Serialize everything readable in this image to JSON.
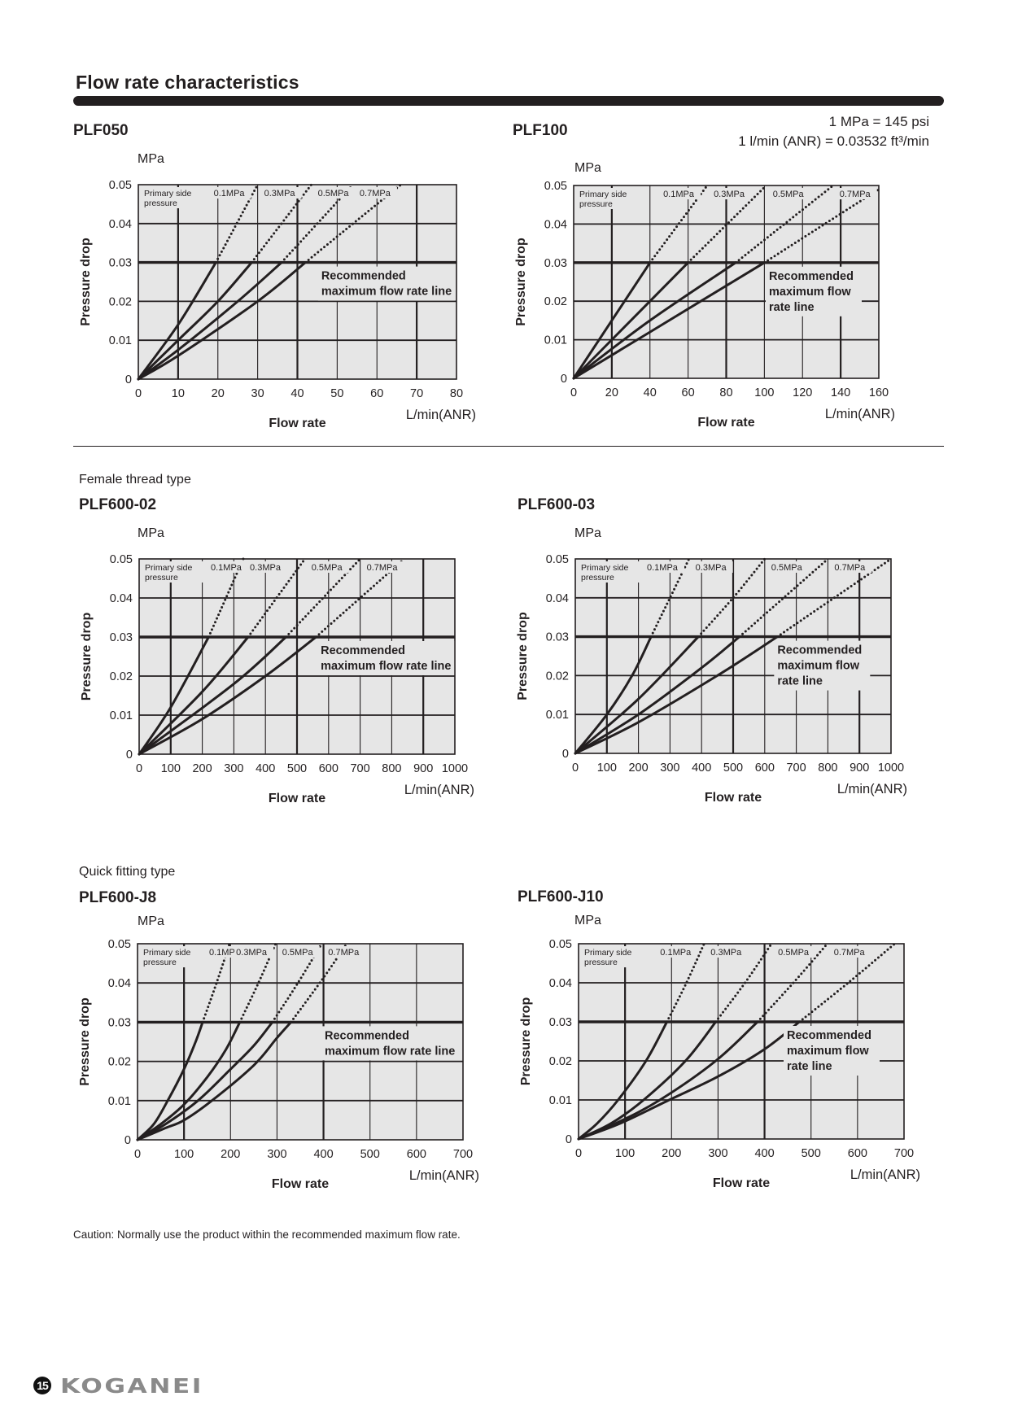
{
  "page": {
    "title": "Flow rate characteristics",
    "conversion": [
      "1 MPa = 145 psi",
      "1 l/min (ANR) = 0.03532 ft³/min"
    ],
    "groups": {
      "female": "Female thread type",
      "quick": "Quick fitting type"
    },
    "caution": "Caution: Normally use the product within the recommended maximum flow rate.",
    "page_number": "15",
    "brand": "KOGANEI"
  },
  "chart_data": [
    {
      "id": "plf050",
      "type": "line",
      "title": "PLF050",
      "xlabel": "Flow rate",
      "xunit": "L/min(ANR)",
      "ylabel": "Pressure drop",
      "yunit": "MPa",
      "xlim": [
        0,
        80
      ],
      "ylim": [
        0,
        0.05
      ],
      "xticks": [
        0,
        10,
        20,
        30,
        40,
        50,
        60,
        70,
        80
      ],
      "yticks": [
        0,
        0.01,
        0.02,
        0.03,
        0.04,
        0.05
      ],
      "ytick_labels": [
        "0",
        "0.01",
        "0.02",
        "0.03",
        "0.04",
        "0.05"
      ],
      "grid": true,
      "legend_title": [
        "Primary side",
        "pressure"
      ],
      "recommended_max_line": {
        "y": 0.03,
        "label": [
          "Recommended",
          "maximum flow rate line"
        ]
      },
      "series": [
        {
          "name": "0.1MPa",
          "solid": [
            [
              0,
              0
            ],
            [
              10,
              0.014
            ],
            [
              19.5,
              0.03
            ]
          ],
          "dotted": [
            [
              19.5,
              0.03
            ],
            [
              30,
              0.05
            ]
          ]
        },
        {
          "name": "0.3MPa",
          "solid": [
            [
              0,
              0
            ],
            [
              10,
              0.01
            ],
            [
              20,
              0.02
            ],
            [
              28.5,
              0.03
            ]
          ],
          "dotted": [
            [
              28.5,
              0.03
            ],
            [
              43.5,
              0.05
            ]
          ]
        },
        {
          "name": "0.5MPa",
          "solid": [
            [
              0,
              0
            ],
            [
              10,
              0.0075
            ],
            [
              25,
              0.02
            ],
            [
              36,
              0.03
            ]
          ],
          "dotted": [
            [
              36,
              0.03
            ],
            [
              54,
              0.05
            ]
          ]
        },
        {
          "name": "0.7MPa",
          "solid": [
            [
              0,
              0
            ],
            [
              10,
              0.006
            ],
            [
              30,
              0.02
            ],
            [
              42,
              0.03
            ]
          ],
          "dotted": [
            [
              42,
              0.03
            ],
            [
              66,
              0.05
            ]
          ]
        }
      ]
    },
    {
      "id": "plf100",
      "type": "line",
      "title": "PLF100",
      "xlabel": "Flow rate",
      "xunit": "L/min(ANR)",
      "ylabel": "Pressure drop",
      "yunit": "MPa",
      "xlim": [
        0,
        160
      ],
      "ylim": [
        0,
        0.05
      ],
      "xticks": [
        0,
        20,
        40,
        60,
        80,
        100,
        120,
        140,
        160
      ],
      "yticks": [
        0,
        0.01,
        0.02,
        0.03,
        0.04,
        0.05
      ],
      "ytick_labels": [
        "0",
        "0.01",
        "0.02",
        "0.03",
        "0.04",
        "0.05"
      ],
      "grid": true,
      "legend_title": [
        "Primary side",
        "pressure"
      ],
      "recommended_max_line": {
        "y": 0.03,
        "label": [
          "Recommended",
          "maximum flow",
          "rate line"
        ]
      },
      "series": [
        {
          "name": "0.1MPa",
          "solid": [
            [
              0,
              0
            ],
            [
              40,
              0.03
            ]
          ],
          "dotted": [
            [
              40,
              0.03
            ],
            [
              70,
              0.05
            ]
          ]
        },
        {
          "name": "0.3MPa",
          "solid": [
            [
              0,
              0
            ],
            [
              40,
              0.02
            ],
            [
              60,
              0.03
            ]
          ],
          "dotted": [
            [
              60,
              0.03
            ],
            [
              101,
              0.05
            ]
          ]
        },
        {
          "name": "0.5MPa",
          "solid": [
            [
              0,
              0
            ],
            [
              40,
              0.015
            ],
            [
              85,
              0.03
            ]
          ],
          "dotted": [
            [
              85,
              0.03
            ],
            [
              136,
              0.05
            ]
          ]
        },
        {
          "name": "0.7MPa",
          "solid": [
            [
              0,
              0
            ],
            [
              40,
              0.012
            ],
            [
              100,
              0.03
            ]
          ],
          "dotted": [
            [
              100,
              0.03
            ],
            [
              160,
              0.049
            ]
          ]
        }
      ]
    },
    {
      "id": "plf600-02",
      "type": "line",
      "title": "PLF600-02",
      "xlabel": "Flow rate",
      "xunit": "L/min(ANR)",
      "ylabel": "Pressure drop",
      "yunit": "MPa",
      "xlim": [
        0,
        1000
      ],
      "ylim": [
        0,
        0.05
      ],
      "xticks": [
        0,
        100,
        200,
        300,
        400,
        500,
        600,
        700,
        800,
        900,
        1000
      ],
      "yticks": [
        0,
        0.01,
        0.02,
        0.03,
        0.04,
        0.05
      ],
      "ytick_labels": [
        "0",
        "0.01",
        "0.02",
        "0.03",
        "0.04",
        "0.05"
      ],
      "grid": true,
      "legend_title": [
        "Primary side",
        "pressure"
      ],
      "recommended_max_line": {
        "y": 0.03,
        "label": [
          "Recommended",
          "maximum flow rate line"
        ]
      },
      "series": [
        {
          "name": "0.1MPa",
          "solid": [
            [
              0,
              0
            ],
            [
              100,
              0.012
            ],
            [
              220,
              0.03
            ]
          ],
          "dotted": [
            [
              220,
              0.03
            ],
            [
              330,
              0.05
            ]
          ]
        },
        {
          "name": "0.3MPa",
          "solid": [
            [
              0,
              0
            ],
            [
              200,
              0.016
            ],
            [
              345,
              0.03
            ]
          ],
          "dotted": [
            [
              345,
              0.03
            ],
            [
              525,
              0.05
            ]
          ]
        },
        {
          "name": "0.5MPa",
          "solid": [
            [
              0,
              0
            ],
            [
              300,
              0.018
            ],
            [
              465,
              0.03
            ]
          ],
          "dotted": [
            [
              465,
              0.03
            ],
            [
              700,
              0.05
            ]
          ]
        },
        {
          "name": "0.7MPa",
          "solid": [
            [
              0,
              0
            ],
            [
              200,
              0.009
            ],
            [
              400,
              0.02
            ],
            [
              560,
              0.03
            ]
          ],
          "dotted": [
            [
              560,
              0.03
            ],
            [
              840,
              0.05
            ]
          ]
        }
      ]
    },
    {
      "id": "plf600-03",
      "type": "line",
      "title": "PLF600-03",
      "xlabel": "Flow rate",
      "xunit": "L/min(ANR)",
      "ylabel": "Pressure drop",
      "yunit": "MPa",
      "xlim": [
        0,
        1000
      ],
      "ylim": [
        0,
        0.05
      ],
      "xticks": [
        0,
        100,
        200,
        300,
        400,
        500,
        600,
        700,
        800,
        900,
        1000
      ],
      "yticks": [
        0,
        0.01,
        0.02,
        0.03,
        0.04,
        0.05
      ],
      "ytick_labels": [
        "0",
        "0.01",
        "0.02",
        "0.03",
        "0.04",
        "0.05"
      ],
      "grid": true,
      "legend_title": [
        "Primary side",
        "pressure"
      ],
      "recommended_max_line": {
        "y": 0.03,
        "label": [
          "Recommended",
          "maximum flow",
          "rate line"
        ]
      },
      "series": [
        {
          "name": "0.1MPa",
          "solid": [
            [
              0,
              0
            ],
            [
              100,
              0.01
            ],
            [
              180,
              0.02
            ],
            [
              240,
              0.03
            ]
          ],
          "dotted": [
            [
              240,
              0.03
            ],
            [
              300,
              0.04
            ],
            [
              360,
              0.05
            ]
          ]
        },
        {
          "name": "0.3MPa",
          "solid": [
            [
              0,
              0
            ],
            [
              200,
              0.014
            ],
            [
              390,
              0.03
            ]
          ],
          "dotted": [
            [
              390,
              0.03
            ],
            [
              500,
              0.04
            ],
            [
              600,
              0.05
            ]
          ]
        },
        {
          "name": "0.5MPa",
          "solid": [
            [
              0,
              0
            ],
            [
              200,
              0.01
            ],
            [
              400,
              0.022
            ],
            [
              520,
              0.03
            ]
          ],
          "dotted": [
            [
              520,
              0.03
            ],
            [
              800,
              0.05
            ]
          ]
        },
        {
          "name": "0.7MPa",
          "solid": [
            [
              0,
              0
            ],
            [
              200,
              0.008
            ],
            [
              450,
              0.02
            ],
            [
              640,
              0.03
            ]
          ],
          "dotted": [
            [
              640,
              0.03
            ],
            [
              820,
              0.04
            ],
            [
              1000,
              0.05
            ]
          ]
        }
      ]
    },
    {
      "id": "plf600-j8",
      "type": "line",
      "title": "PLF600-J8",
      "xlabel": "Flow rate",
      "xunit": "L/min(ANR)",
      "ylabel": "Pressure drop",
      "yunit": "MPa",
      "xlim": [
        0,
        700
      ],
      "ylim": [
        0,
        0.05
      ],
      "xticks": [
        0,
        100,
        200,
        300,
        400,
        500,
        600,
        700
      ],
      "yticks": [
        0,
        0.01,
        0.02,
        0.03,
        0.04,
        0.05
      ],
      "ytick_labels": [
        "0",
        "0.01",
        "0.02",
        "0.03",
        "0.04",
        "0.05"
      ],
      "grid": true,
      "legend_title": [
        "Primary side",
        "pressure"
      ],
      "recommended_max_line": {
        "y": 0.03,
        "label": [
          "Recommended",
          "maximum flow rate line"
        ]
      },
      "series": [
        {
          "name": "0.1MPa",
          "solid": [
            [
              0,
              0
            ],
            [
              35,
              0.004
            ],
            [
              65,
              0.01
            ],
            [
              100,
              0.018
            ],
            [
              125,
              0.025
            ],
            [
              140,
              0.03
            ]
          ],
          "dotted": [
            [
              140,
              0.03
            ],
            [
              170,
              0.04
            ],
            [
              198,
              0.05
            ]
          ]
        },
        {
          "name": "0.3MPa",
          "solid": [
            [
              0,
              0
            ],
            [
              50,
              0.004
            ],
            [
              100,
              0.009
            ],
            [
              150,
              0.016
            ],
            [
              190,
              0.023
            ],
            [
              220,
              0.03
            ]
          ],
          "dotted": [
            [
              220,
              0.03
            ],
            [
              260,
              0.04
            ],
            [
              297,
              0.05
            ]
          ]
        },
        {
          "name": "0.5MPa",
          "solid": [
            [
              0,
              0
            ],
            [
              60,
              0.004
            ],
            [
              130,
              0.01
            ],
            [
              200,
              0.018
            ],
            [
              250,
              0.024
            ],
            [
              290,
              0.03
            ]
          ],
          "dotted": [
            [
              290,
              0.03
            ],
            [
              345,
              0.04
            ],
            [
              396,
              0.05
            ]
          ]
        },
        {
          "name": "0.7MPa",
          "solid": [
            [
              0,
              0
            ],
            [
              60,
              0.003
            ],
            [
              100,
              0.005
            ],
            [
              160,
              0.01
            ],
            [
              250,
              0.019
            ],
            [
              300,
              0.026
            ],
            [
              330,
              0.03
            ]
          ],
          "dotted": [
            [
              330,
              0.03
            ],
            [
              398,
              0.041
            ],
            [
              450,
              0.05
            ]
          ]
        }
      ]
    },
    {
      "id": "plf600-j10",
      "type": "line",
      "title": "PLF600-J10",
      "xlabel": "Flow rate",
      "xunit": "L/min(ANR)",
      "ylabel": "Pressure drop",
      "yunit": "MPa",
      "xlim": [
        0,
        700
      ],
      "ylim": [
        0,
        0.05
      ],
      "xticks": [
        0,
        100,
        200,
        300,
        400,
        500,
        600,
        700
      ],
      "yticks": [
        0,
        0.01,
        0.02,
        0.03,
        0.04,
        0.05
      ],
      "ytick_labels": [
        "0",
        "0.01",
        "0.02",
        "0.03",
        "0.04",
        "0.05"
      ],
      "grid": true,
      "legend_title": [
        "Primary side",
        "pressure"
      ],
      "recommended_max_line": {
        "y": 0.03,
        "label": [
          "Recommended",
          "maximum flow",
          "rate line"
        ]
      },
      "series": [
        {
          "name": "0.1MPa",
          "solid": [
            [
              0,
              0
            ],
            [
              40,
              0.004
            ],
            [
              85,
              0.01
            ],
            [
              145,
              0.02
            ],
            [
              190,
              0.03
            ]
          ],
          "dotted": [
            [
              190,
              0.03
            ],
            [
              232,
              0.04
            ],
            [
              270,
              0.05
            ]
          ]
        },
        {
          "name": "0.3MPa",
          "solid": [
            [
              0,
              0
            ],
            [
              70,
              0.004
            ],
            [
              140,
              0.01
            ],
            [
              230,
              0.02
            ],
            [
              295,
              0.03
            ]
          ],
          "dotted": [
            [
              295,
              0.03
            ],
            [
              358,
              0.04
            ],
            [
              415,
              0.05
            ]
          ]
        },
        {
          "name": "0.5MPa",
          "solid": [
            [
              0,
              0
            ],
            [
              80,
              0.004
            ],
            [
              175,
              0.01
            ],
            [
              295,
              0.02
            ],
            [
              385,
              0.03
            ]
          ],
          "dotted": [
            [
              385,
              0.03
            ],
            [
              462,
              0.04
            ],
            [
              535,
              0.05
            ]
          ]
        },
        {
          "name": "0.7MPa",
          "solid": [
            [
              0,
              0
            ],
            [
              90,
              0.004
            ],
            [
              195,
              0.01
            ],
            [
              300,
              0.016
            ],
            [
              400,
              0.023
            ],
            [
              475,
              0.03
            ]
          ],
          "dotted": [
            [
              475,
              0.03
            ],
            [
              580,
              0.04
            ],
            [
              680,
              0.05
            ]
          ]
        }
      ]
    }
  ]
}
